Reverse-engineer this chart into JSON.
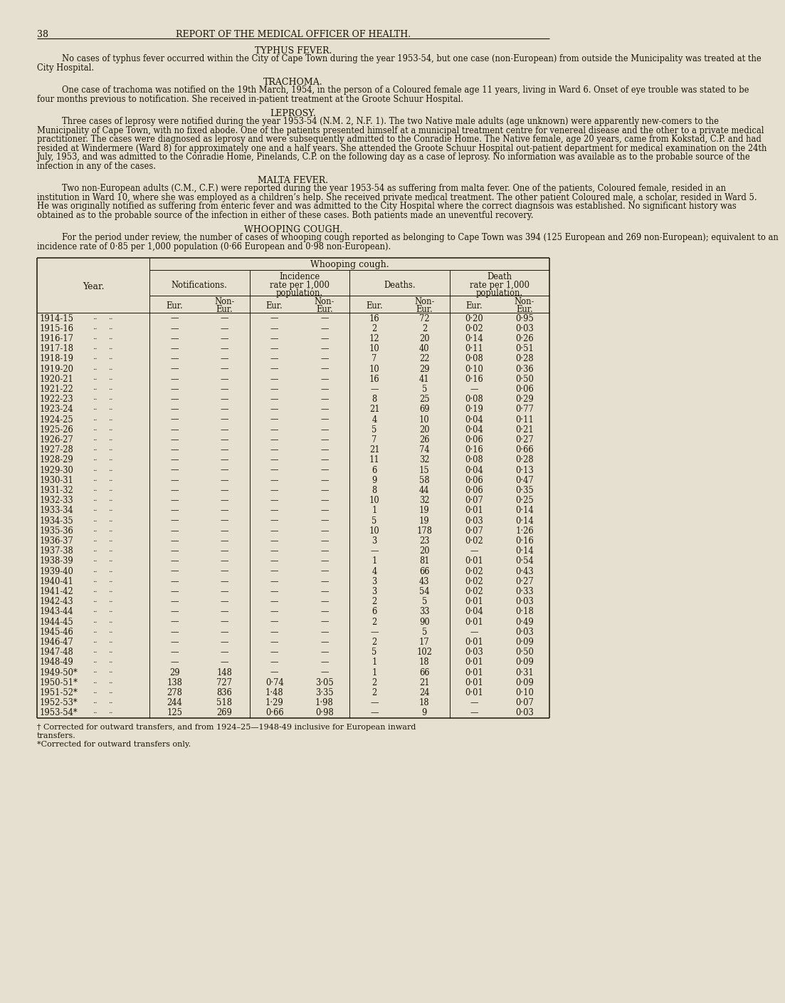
{
  "bg_color": "#e5e0d0",
  "page_number": "38",
  "header": "REPORT OF THE MEDICAL OFFICER OF HEALTH.",
  "sections": [
    {
      "title": "TYPHUS FEVER.",
      "body": "No cases of typhus fever occurred within the City of Cape Town during the year 1953-54, but one case (non-European) from outside the Municipality was treated at the City Hospital."
    },
    {
      "title": "TRACHOMA.",
      "body": "One case of trachoma was notified on the 19th March, 1954, in the person of a Coloured female age 11 years, living in Ward 6. Onset of eye trouble was stated to be four months previous to notification. She received in-patient treatment at the Groote Schuur Hospital."
    },
    {
      "title": "LEPROSY.",
      "body": "Three cases of leprosy were notified during the year 1953-54 (N.M. 2, N.F. 1). The two Native male adults (age unknown) were apparently new-comers to the Municipality of Cape Town, with no fixed abode. One of the patients presented himself at a municipal treatment centre for venereal disease and the other to a private medical practitioner. The cases were diagnosed as leprosy and were subsequently admitted to the Conradie Home. The Native female, age 20 years, came from Kokstad, C.P. and had resided at Windermere (Ward 8) for approximately one and a half years. She attended the Groote Schuur Hospital out-patient department for medical examination on the 24th July, 1953, and was admitted to the Conradie Home, Pinelands, C.P. on the following day as a case of leprosy. No information was available as to the probable source of the infection in any of the cases."
    },
    {
      "title": "MALTA FEVER.",
      "body": "Two non-European adults (C.M., C.F.) were reported during the year 1953-54 as suffering from malta fever. One of the patients, Coloured female, resided in an institution in Ward 10, where she was employed as a children’s help. She received private medical treatment. The other patient Coloured male, a scholar, resided in Ward 5. He was originally notified as suffering from enteric fever and was admitted to the City Hospital where the correct diagnsois was established. No significant history was obtained as to the probable source of the infection in either of these cases. Both patients made  an uneventful recovery."
    },
    {
      "title": "WHOOPING COUGH.",
      "body": "For the period under review, the number of cases of whooping cough reported as belonging to Cape Town was 394 (125 European and 269 non-European); equivalent to an incidence rate of 0·85 per 1,000 population (0·66 European and 0·98 non-European)."
    }
  ],
  "table": {
    "col_subgroups": [
      "Notifications.",
      "Incidence\nrate per 1,000\npopulation.",
      "Deaths.",
      "Death\nrate per 1,000\npopulation."
    ],
    "col_headers": [
      "Eur.",
      "Non-\nEur.",
      "Eur.",
      "Non-\nEur.",
      "Eur.",
      "Non-\nEur.",
      "Eur.",
      "Non-\nEur."
    ],
    "rows": [
      [
        "1914-15",
        "—",
        "—",
        "—",
        "—",
        "16",
        "72",
        "0·20",
        "0·95"
      ],
      [
        "1915-16",
        "—",
        "—",
        "—",
        "—",
        "2",
        "2",
        "0·02",
        "0·03"
      ],
      [
        "1916-17",
        "—",
        "—",
        "—",
        "—",
        "12",
        "20",
        "0·14",
        "0·26"
      ],
      [
        "1917-18",
        "—",
        "—",
        "—",
        "—",
        "10",
        "40",
        "0·11",
        "0·51"
      ],
      [
        "1918-19",
        "—",
        "—",
        "—",
        "—",
        "7",
        "22",
        "0·08",
        "0·28"
      ],
      [
        "1919-20",
        "—",
        "—",
        "—",
        "—",
        "10",
        "29",
        "0·10",
        "0·36"
      ],
      [
        "1920-21",
        "—",
        "—",
        "—",
        "—",
        "16",
        "41",
        "0·16",
        "0·50"
      ],
      [
        "1921-22",
        "—",
        "—",
        "—",
        "—",
        "—",
        "5",
        "—",
        "0·06"
      ],
      [
        "1922-23",
        "—",
        "—",
        "—",
        "—",
        "8",
        "25",
        "0·08",
        "0·29"
      ],
      [
        "1923-24",
        "—",
        "—",
        "—",
        "—",
        "21",
        "69",
        "0·19",
        "0·77"
      ],
      [
        "1924-25",
        "—",
        "—",
        "—",
        "—",
        "4",
        "10",
        "0·04",
        "0·11"
      ],
      [
        "1925-26",
        "—",
        "—",
        "—",
        "—",
        "5",
        "20",
        "0·04",
        "0·21"
      ],
      [
        "1926-27",
        "—",
        "—",
        "—",
        "—",
        "7",
        "26",
        "0·06",
        "0·27"
      ],
      [
        "1927-28",
        "—",
        "—",
        "—",
        "—",
        "21",
        "74",
        "0·16",
        "0·66"
      ],
      [
        "1928-29",
        "—",
        "—",
        "—",
        "—",
        "11",
        "32",
        "0·08",
        "0·28"
      ],
      [
        "1929-30",
        "—",
        "—",
        "—",
        "—",
        "6",
        "15",
        "0·04",
        "0·13"
      ],
      [
        "1930-31",
        "—",
        "—",
        "—",
        "—",
        "9",
        "58",
        "0·06",
        "0·47"
      ],
      [
        "1931-32",
        "—",
        "—",
        "—",
        "—",
        "8",
        "44",
        "0·06",
        "0·35"
      ],
      [
        "1932-33",
        "—",
        "—",
        "—",
        "—",
        "10",
        "32",
        "0·07",
        "0·25"
      ],
      [
        "1933-34",
        "—",
        "—",
        "—",
        "—",
        "1",
        "19",
        "0·01",
        "0·14"
      ],
      [
        "1934-35",
        "—",
        "—",
        "—",
        "—",
        "5",
        "19",
        "0·03",
        "0·14"
      ],
      [
        "1935-36",
        "—",
        "—",
        "—",
        "—",
        "10",
        "178",
        "0·07",
        "1·26"
      ],
      [
        "1936-37",
        "—",
        "—",
        "—",
        "—",
        "3",
        "23",
        "0·02",
        "0·16"
      ],
      [
        "1937-38",
        "—",
        "—",
        "—",
        "—",
        "—",
        "20",
        "—",
        "0·14"
      ],
      [
        "1938-39",
        "—",
        "—",
        "—",
        "—",
        "1",
        "81",
        "0·01",
        "0·54"
      ],
      [
        "1939-40",
        "—",
        "—",
        "—",
        "—",
        "4",
        "66",
        "0·02",
        "0·43"
      ],
      [
        "1940-41",
        "—",
        "—",
        "—",
        "—",
        "3",
        "43",
        "0·02",
        "0·27"
      ],
      [
        "1941-42",
        "—",
        "—",
        "—",
        "—",
        "3",
        "54",
        "0·02",
        "0·33"
      ],
      [
        "1942-43",
        "—",
        "—",
        "—",
        "—",
        "2",
        "5",
        "0·01",
        "0·03"
      ],
      [
        "1943-44",
        "—",
        "—",
        "—",
        "—",
        "6",
        "33",
        "0·04",
        "0·18"
      ],
      [
        "1944-45",
        "—",
        "—",
        "—",
        "—",
        "2",
        "90",
        "0·01",
        "0·49"
      ],
      [
        "1945-46",
        "—",
        "—",
        "—",
        "—",
        "—",
        "5",
        "—",
        "0·03"
      ],
      [
        "1946-47",
        "—",
        "—",
        "—",
        "—",
        "2",
        "17",
        "0·01",
        "0·09"
      ],
      [
        "1947-48",
        "—",
        "—",
        "—",
        "—",
        "5",
        "102",
        "0·03",
        "0·50"
      ],
      [
        "1948-49",
        "—",
        "—",
        "—",
        "—",
        "1",
        "18",
        "0·01",
        "0·09"
      ],
      [
        "1949-50*",
        "29",
        "148",
        "—",
        "—",
        "1",
        "66",
        "0·01",
        "0·31"
      ],
      [
        "1950-51*",
        "138",
        "727",
        "0·74",
        "3·05",
        "2",
        "21",
        "0·01",
        "0·09"
      ],
      [
        "1951-52*",
        "278",
        "836",
        "1·48",
        "3·35",
        "2",
        "24",
        "0·01",
        "0·10"
      ],
      [
        "1952-53*",
        "244",
        "518",
        "1·29",
        "1·98",
        "—",
        "18",
        "—",
        "0·07"
      ],
      [
        "1953-54*",
        "125",
        "269",
        "0·66",
        "0·98",
        "—",
        "9",
        "—",
        "0·03"
      ]
    ],
    "footnotes": [
      "† Corrected for outward transfers, and from 1924–25—1948-49 inclusive for European inward\ntransfers.",
      "*Corrected for outward transfers only."
    ]
  }
}
